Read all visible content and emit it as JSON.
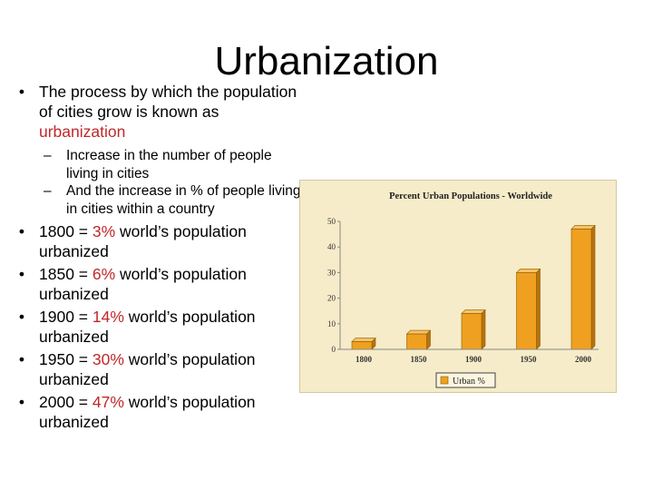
{
  "title": "Urbanization",
  "bullets": [
    {
      "pre": "The process by which the population of cities grow is known as ",
      "hl": "urbanization",
      "post": "",
      "sub": [
        "Increase in the number of people living in cities",
        "And the increase in % of people living in cities within a country"
      ]
    },
    {
      "pre": "1800 = ",
      "hl": "3%",
      "post": " world’s population urbanized"
    },
    {
      "pre": "1850 = ",
      "hl": "6%",
      "post": " world’s population urbanized"
    },
    {
      "pre": "1900 = ",
      "hl": "14%",
      "post": " world’s population urbanized"
    },
    {
      "pre": "1950 = ",
      "hl": "30%",
      "post": " world’s population urbanized"
    },
    {
      "pre": "2000 = ",
      "hl": "47%",
      "post": " world’s population urbanized"
    }
  ],
  "colors": {
    "highlight": "#c0282a",
    "bar": "#f0a020",
    "panel": "#f6ecc9"
  },
  "chart_data": {
    "type": "bar",
    "title": "Percent Urban Populations - Worldwide",
    "categories": [
      "1800",
      "1850",
      "1900",
      "1950",
      "2000"
    ],
    "series": [
      {
        "name": "Urban %",
        "values": [
          3,
          6,
          14,
          30,
          47
        ]
      }
    ],
    "ylim": [
      0,
      50
    ],
    "yticks": [
      0,
      10,
      20,
      30,
      40,
      50
    ],
    "legend": "bottom-center",
    "grid": false
  }
}
